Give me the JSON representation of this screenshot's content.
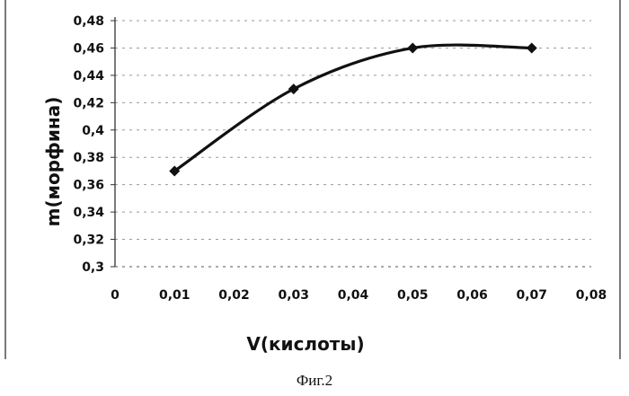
{
  "chart_data": {
    "type": "line",
    "xlabel": "V(кислоты)",
    "ylabel": "m(морфина)",
    "x": [
      0.01,
      0.03,
      0.05,
      0.07
    ],
    "series": [
      {
        "values": [
          0.37,
          0.43,
          0.46,
          0.46
        ],
        "color": "#111111",
        "marker": "diamond",
        "smooth": true
      }
    ],
    "xlim": [
      0,
      0.08
    ],
    "ylim": [
      0.3,
      0.48
    ],
    "x_ticks": [
      0,
      0.01,
      0.02,
      0.03,
      0.04,
      0.05,
      0.06,
      0.07,
      0.08
    ],
    "x_tick_labels": [
      "0",
      "0,01",
      "0,02",
      "0,03",
      "0,04",
      "0,05",
      "0,06",
      "0,07",
      "0,08"
    ],
    "y_ticks": [
      0.3,
      0.32,
      0.34,
      0.36,
      0.38,
      0.4,
      0.42,
      0.44,
      0.46,
      0.48
    ],
    "y_tick_labels": [
      "0,3",
      "0,32",
      "0,34",
      "0,36",
      "0,38",
      "0,4",
      "0,42",
      "0,44",
      "0,46",
      "0,48"
    ],
    "grid": "horizontal-dashed",
    "legend": "none"
  },
  "caption": "Фиг.2"
}
